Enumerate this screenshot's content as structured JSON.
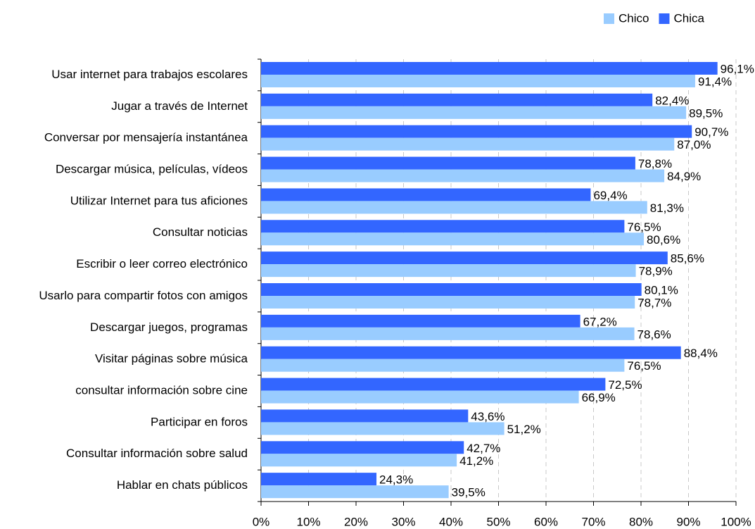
{
  "chart_data": {
    "type": "barh",
    "categories": [
      "Usar internet para trabajos escolares",
      "Jugar a través de Internet",
      "Conversar por mensajería instantánea",
      "Descargar música, películas, vídeos",
      "Utilizar Internet para tus aficiones",
      "Consultar noticias",
      "Escribir o leer correo electrónico",
      "Usarlo para compartir fotos con amigos",
      "Descargar juegos, programas",
      "Visitar páginas sobre música",
      "consultar información sobre cine",
      "Participar en foros",
      "Consultar información sobre salud",
      "Hablar en chats públicos"
    ],
    "series": [
      {
        "name": "Chico",
        "color": "#99ccff",
        "values": [
          91.4,
          89.5,
          87.0,
          84.9,
          81.3,
          80.6,
          78.9,
          78.7,
          78.6,
          76.5,
          66.9,
          51.2,
          41.2,
          39.5
        ],
        "value_labels": [
          "91,4%",
          "89,5%",
          "87,0%",
          "84,9%",
          "81,3%",
          "80,6%",
          "78,9%",
          "78,7%",
          "78,6%",
          "76,5%",
          "66,9%",
          "51,2%",
          "41,2%",
          "39,5%"
        ]
      },
      {
        "name": "Chica",
        "color": "#3366ff",
        "values": [
          96.1,
          82.4,
          90.7,
          78.8,
          69.4,
          76.5,
          85.6,
          80.1,
          67.2,
          88.4,
          72.5,
          43.6,
          42.7,
          24.3
        ],
        "value_labels": [
          "96,1%",
          "82,4%",
          "90,7%",
          "78,8%",
          "69,4%",
          "76,5%",
          "85,6%",
          "80,1%",
          "67,2%",
          "88,4%",
          "72,5%",
          "43,6%",
          "42,7%",
          "24,3%"
        ]
      }
    ],
    "xlim": [
      0,
      100
    ],
    "xticks": [
      {
        "value": 0,
        "label": "0%"
      },
      {
        "value": 10,
        "label": "10%"
      },
      {
        "value": 20,
        "label": "20%"
      },
      {
        "value": 30,
        "label": "30%"
      },
      {
        "value": 40,
        "label": "40%"
      },
      {
        "value": 50,
        "label": "50%"
      },
      {
        "value": 60,
        "label": "60%"
      },
      {
        "value": 70,
        "label": "70%"
      },
      {
        "value": 80,
        "label": "80%"
      },
      {
        "value": 90,
        "label": "90%"
      },
      {
        "value": 100,
        "label": "100%"
      }
    ],
    "grid": true,
    "legend": "top-right"
  }
}
